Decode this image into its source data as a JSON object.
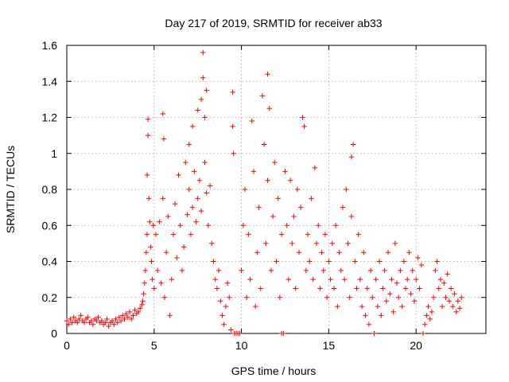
{
  "chart_data": {
    "type": "scatter",
    "title": "Day 217 of 2019, SRMTID for receiver ab33",
    "xlabel": "GPS time / hours",
    "ylabel": "SRMTID / TECUs",
    "xlim": [
      0,
      24
    ],
    "ylim": [
      0,
      1.6
    ],
    "x_ticks": [
      0,
      5,
      10,
      15,
      20
    ],
    "x_tick_labels": [
      "0",
      "5",
      "10",
      "15",
      "20"
    ],
    "y_ticks": [
      0,
      0.2,
      0.4,
      0.6,
      0.8,
      1.0,
      1.2,
      1.4,
      1.6
    ],
    "y_tick_labels": [
      "0",
      "0.2",
      "0.4",
      "0.6",
      "0.8",
      "1",
      "1.2",
      "1.4",
      "1.6"
    ],
    "grid": true,
    "marker": "plus",
    "color": "#ff0000",
    "series": [
      {
        "name": "SRMTID",
        "points": [
          [
            0.0,
            0.07
          ],
          [
            0.1,
            0.05
          ],
          [
            0.2,
            0.08
          ],
          [
            0.3,
            0.06
          ],
          [
            0.4,
            0.09
          ],
          [
            0.5,
            0.07
          ],
          [
            0.6,
            0.06
          ],
          [
            0.7,
            0.08
          ],
          [
            0.8,
            0.1
          ],
          [
            0.9,
            0.07
          ],
          [
            1.0,
            0.06
          ],
          [
            1.1,
            0.08
          ],
          [
            1.2,
            0.09
          ],
          [
            1.3,
            0.06
          ],
          [
            1.4,
            0.07
          ],
          [
            1.5,
            0.05
          ],
          [
            1.6,
            0.08
          ],
          [
            1.7,
            0.07
          ],
          [
            1.8,
            0.09
          ],
          [
            1.9,
            0.06
          ],
          [
            2.0,
            0.07
          ],
          [
            2.1,
            0.05
          ],
          [
            2.2,
            0.06
          ],
          [
            2.3,
            0.08
          ],
          [
            2.4,
            0.04
          ],
          [
            2.5,
            0.06
          ],
          [
            2.6,
            0.07
          ],
          [
            2.7,
            0.05
          ],
          [
            2.8,
            0.08
          ],
          [
            2.9,
            0.06
          ],
          [
            3.0,
            0.09
          ],
          [
            3.1,
            0.07
          ],
          [
            3.2,
            0.1
          ],
          [
            3.3,
            0.08
          ],
          [
            3.4,
            0.11
          ],
          [
            3.5,
            0.09
          ],
          [
            3.6,
            0.12
          ],
          [
            3.7,
            0.08
          ],
          [
            3.8,
            0.1
          ],
          [
            3.9,
            0.13
          ],
          [
            4.0,
            0.11
          ],
          [
            4.1,
            0.12
          ],
          [
            4.2,
            0.14
          ],
          [
            4.3,
            0.16
          ],
          [
            4.35,
            0.18
          ],
          [
            4.4,
            0.22
          ],
          [
            4.45,
            0.28
          ],
          [
            4.5,
            0.35
          ],
          [
            4.55,
            0.45
          ],
          [
            4.6,
            0.55
          ],
          [
            4.6,
            0.88
          ],
          [
            4.65,
            1.1
          ],
          [
            4.65,
            1.19
          ],
          [
            4.7,
            0.75
          ],
          [
            4.75,
            0.62
          ],
          [
            4.8,
            0.48
          ],
          [
            4.85,
            0.4
          ],
          [
            4.9,
            0.3
          ],
          [
            4.95,
            0.6
          ],
          [
            5.0,
            0.25
          ],
          [
            5.1,
            0.55
          ],
          [
            5.2,
            0.35
          ],
          [
            5.3,
            0.62
          ],
          [
            5.4,
            0.28
          ],
          [
            5.5,
            0.75
          ],
          [
            5.5,
            1.22
          ],
          [
            5.55,
            1.08
          ],
          [
            5.6,
            0.2
          ],
          [
            5.7,
            0.45
          ],
          [
            5.8,
            0.65
          ],
          [
            5.9,
            0.1
          ],
          [
            6.0,
            0.3
          ],
          [
            6.1,
            0.55
          ],
          [
            6.2,
            0.72
          ],
          [
            6.3,
            0.42
          ],
          [
            6.4,
            0.88
          ],
          [
            6.5,
            0.6
          ],
          [
            6.6,
            0.35
          ],
          [
            6.7,
            0.48
          ],
          [
            6.8,
            0.95
          ],
          [
            6.9,
            0.66
          ],
          [
            7.0,
            0.8
          ],
          [
            7.0,
            1.05
          ],
          [
            7.1,
            0.55
          ],
          [
            7.2,
            0.7
          ],
          [
            7.2,
            1.15
          ],
          [
            7.3,
            0.9
          ],
          [
            7.4,
            0.62
          ],
          [
            7.5,
            0.75
          ],
          [
            7.5,
            1.24
          ],
          [
            7.6,
            0.85
          ],
          [
            7.7,
            0.68
          ],
          [
            7.7,
            1.3
          ],
          [
            7.8,
            1.56
          ],
          [
            7.8,
            1.42
          ],
          [
            7.9,
            1.2
          ],
          [
            7.9,
            0.95
          ],
          [
            8.0,
            0.78
          ],
          [
            8.0,
            1.35
          ],
          [
            8.1,
            0.6
          ],
          [
            8.2,
            0.82
          ],
          [
            8.3,
            0.5
          ],
          [
            8.4,
            0.4
          ],
          [
            8.5,
            0.3
          ],
          [
            8.6,
            0.25
          ],
          [
            8.7,
            0.35
          ],
          [
            8.8,
            0.18
          ],
          [
            8.9,
            0.1
          ],
          [
            9.0,
            0.05
          ],
          [
            9.1,
            0.15
          ],
          [
            9.2,
            0.28
          ],
          [
            9.3,
            0.2
          ],
          [
            9.4,
            0.02
          ],
          [
            9.5,
            1.34
          ],
          [
            9.5,
            1.15
          ],
          [
            9.55,
            1.0
          ],
          [
            9.6,
            0.0
          ],
          [
            9.7,
            0.0
          ],
          [
            9.8,
            0.0
          ],
          [
            9.9,
            0.0
          ],
          [
            10.0,
            0.35
          ],
          [
            10.1,
            0.6
          ],
          [
            10.2,
            0.8
          ],
          [
            10.3,
            0.2
          ],
          [
            10.4,
            0.55
          ],
          [
            10.5,
            0.3
          ],
          [
            10.6,
            1.18
          ],
          [
            10.7,
            0.9
          ],
          [
            10.8,
            0.15
          ],
          [
            10.9,
            0.45
          ],
          [
            11.0,
            0.7
          ],
          [
            11.1,
            0.25
          ],
          [
            11.2,
            1.32
          ],
          [
            11.3,
            1.05
          ],
          [
            11.4,
            0.5
          ],
          [
            11.5,
            0.85
          ],
          [
            11.5,
            1.44
          ],
          [
            11.6,
            1.25
          ],
          [
            11.7,
            0.35
          ],
          [
            11.8,
            0.65
          ],
          [
            11.9,
            0.95
          ],
          [
            12.0,
            0.4
          ],
          [
            12.1,
            0.75
          ],
          [
            12.2,
            0.2
          ],
          [
            12.3,
            0.55
          ],
          [
            12.3,
            0.0
          ],
          [
            12.4,
            0.0
          ],
          [
            12.5,
            0.9
          ],
          [
            12.6,
            0.6
          ],
          [
            12.7,
            0.3
          ],
          [
            12.8,
            0.85
          ],
          [
            12.9,
            0.5
          ],
          [
            13.0,
            0.65
          ],
          [
            13.1,
            0.25
          ],
          [
            13.2,
            0.8
          ],
          [
            13.3,
            0.45
          ],
          [
            13.4,
            0.7
          ],
          [
            13.5,
            1.2
          ],
          [
            13.6,
            1.15
          ],
          [
            13.7,
            0.35
          ],
          [
            13.8,
            0.55
          ],
          [
            13.9,
            0.4
          ],
          [
            14.0,
            0.75
          ],
          [
            14.1,
            0.3
          ],
          [
            14.2,
            0.92
          ],
          [
            14.3,
            0.5
          ],
          [
            14.4,
            0.6
          ],
          [
            14.5,
            0.25
          ],
          [
            14.6,
            0.45
          ],
          [
            14.7,
            0.35
          ],
          [
            14.8,
            0.55
          ],
          [
            14.9,
            0.2
          ],
          [
            15.0,
            0.4
          ],
          [
            15.1,
            0.3
          ],
          [
            15.2,
            0.5
          ],
          [
            15.3,
            0.25
          ],
          [
            15.4,
            0.6
          ],
          [
            15.5,
            0.15
          ],
          [
            15.6,
            0.45
          ],
          [
            15.7,
            0.35
          ],
          [
            15.8,
            0.7
          ],
          [
            15.9,
            0.3
          ],
          [
            16.0,
            0.8
          ],
          [
            16.1,
            0.5
          ],
          [
            16.2,
            0.2
          ],
          [
            16.3,
            0.65
          ],
          [
            16.3,
            0.98
          ],
          [
            16.4,
            1.05
          ],
          [
            16.5,
            0.4
          ],
          [
            16.6,
            0.25
          ],
          [
            16.7,
            0.55
          ],
          [
            16.8,
            0.3
          ],
          [
            16.9,
            0.15
          ],
          [
            17.0,
            0.45
          ],
          [
            17.1,
            0.1
          ],
          [
            17.2,
            0.25
          ],
          [
            17.3,
            0.05
          ],
          [
            17.4,
            0.35
          ],
          [
            17.5,
            0.2
          ],
          [
            17.6,
            0.0
          ],
          [
            17.7,
            0.3
          ],
          [
            17.8,
            0.15
          ],
          [
            17.9,
            0.4
          ],
          [
            18.0,
            0.1
          ],
          [
            18.1,
            0.25
          ],
          [
            18.2,
            0.35
          ],
          [
            18.3,
            0.18
          ],
          [
            18.4,
            0.45
          ],
          [
            18.5,
            0.22
          ],
          [
            18.6,
            0.3
          ],
          [
            18.7,
            0.12
          ],
          [
            18.8,
            0.5
          ],
          [
            18.9,
            0.28
          ],
          [
            19.0,
            0.2
          ],
          [
            19.1,
            0.35
          ],
          [
            19.2,
            0.15
          ],
          [
            19.3,
            0.4
          ],
          [
            19.4,
            0.25
          ],
          [
            19.5,
            0.3
          ],
          [
            19.6,
            0.45
          ],
          [
            19.7,
            0.22
          ],
          [
            19.8,
            0.35
          ],
          [
            19.9,
            0.18
          ],
          [
            20.0,
            0.3
          ],
          [
            20.1,
            0.42
          ],
          [
            20.2,
            0.25
          ],
          [
            20.3,
            0.38
          ],
          [
            20.4,
            0.0
          ],
          [
            20.5,
            0.05
          ],
          [
            20.6,
            0.1
          ],
          [
            20.7,
            0.15
          ],
          [
            20.8,
            0.08
          ],
          [
            20.9,
            0.12
          ],
          [
            21.0,
            0.2
          ],
          [
            21.1,
            0.35
          ],
          [
            21.2,
            0.4
          ],
          [
            21.3,
            0.25
          ],
          [
            21.4,
            0.3
          ],
          [
            21.5,
            0.15
          ],
          [
            21.6,
            0.28
          ],
          [
            21.7,
            0.2
          ],
          [
            21.8,
            0.33
          ],
          [
            21.9,
            0.18
          ],
          [
            22.0,
            0.25
          ],
          [
            22.1,
            0.15
          ],
          [
            22.2,
            0.22
          ],
          [
            22.3,
            0.12
          ],
          [
            22.4,
            0.18
          ],
          [
            22.5,
            0.14
          ],
          [
            22.6,
            0.2
          ]
        ]
      }
    ]
  }
}
